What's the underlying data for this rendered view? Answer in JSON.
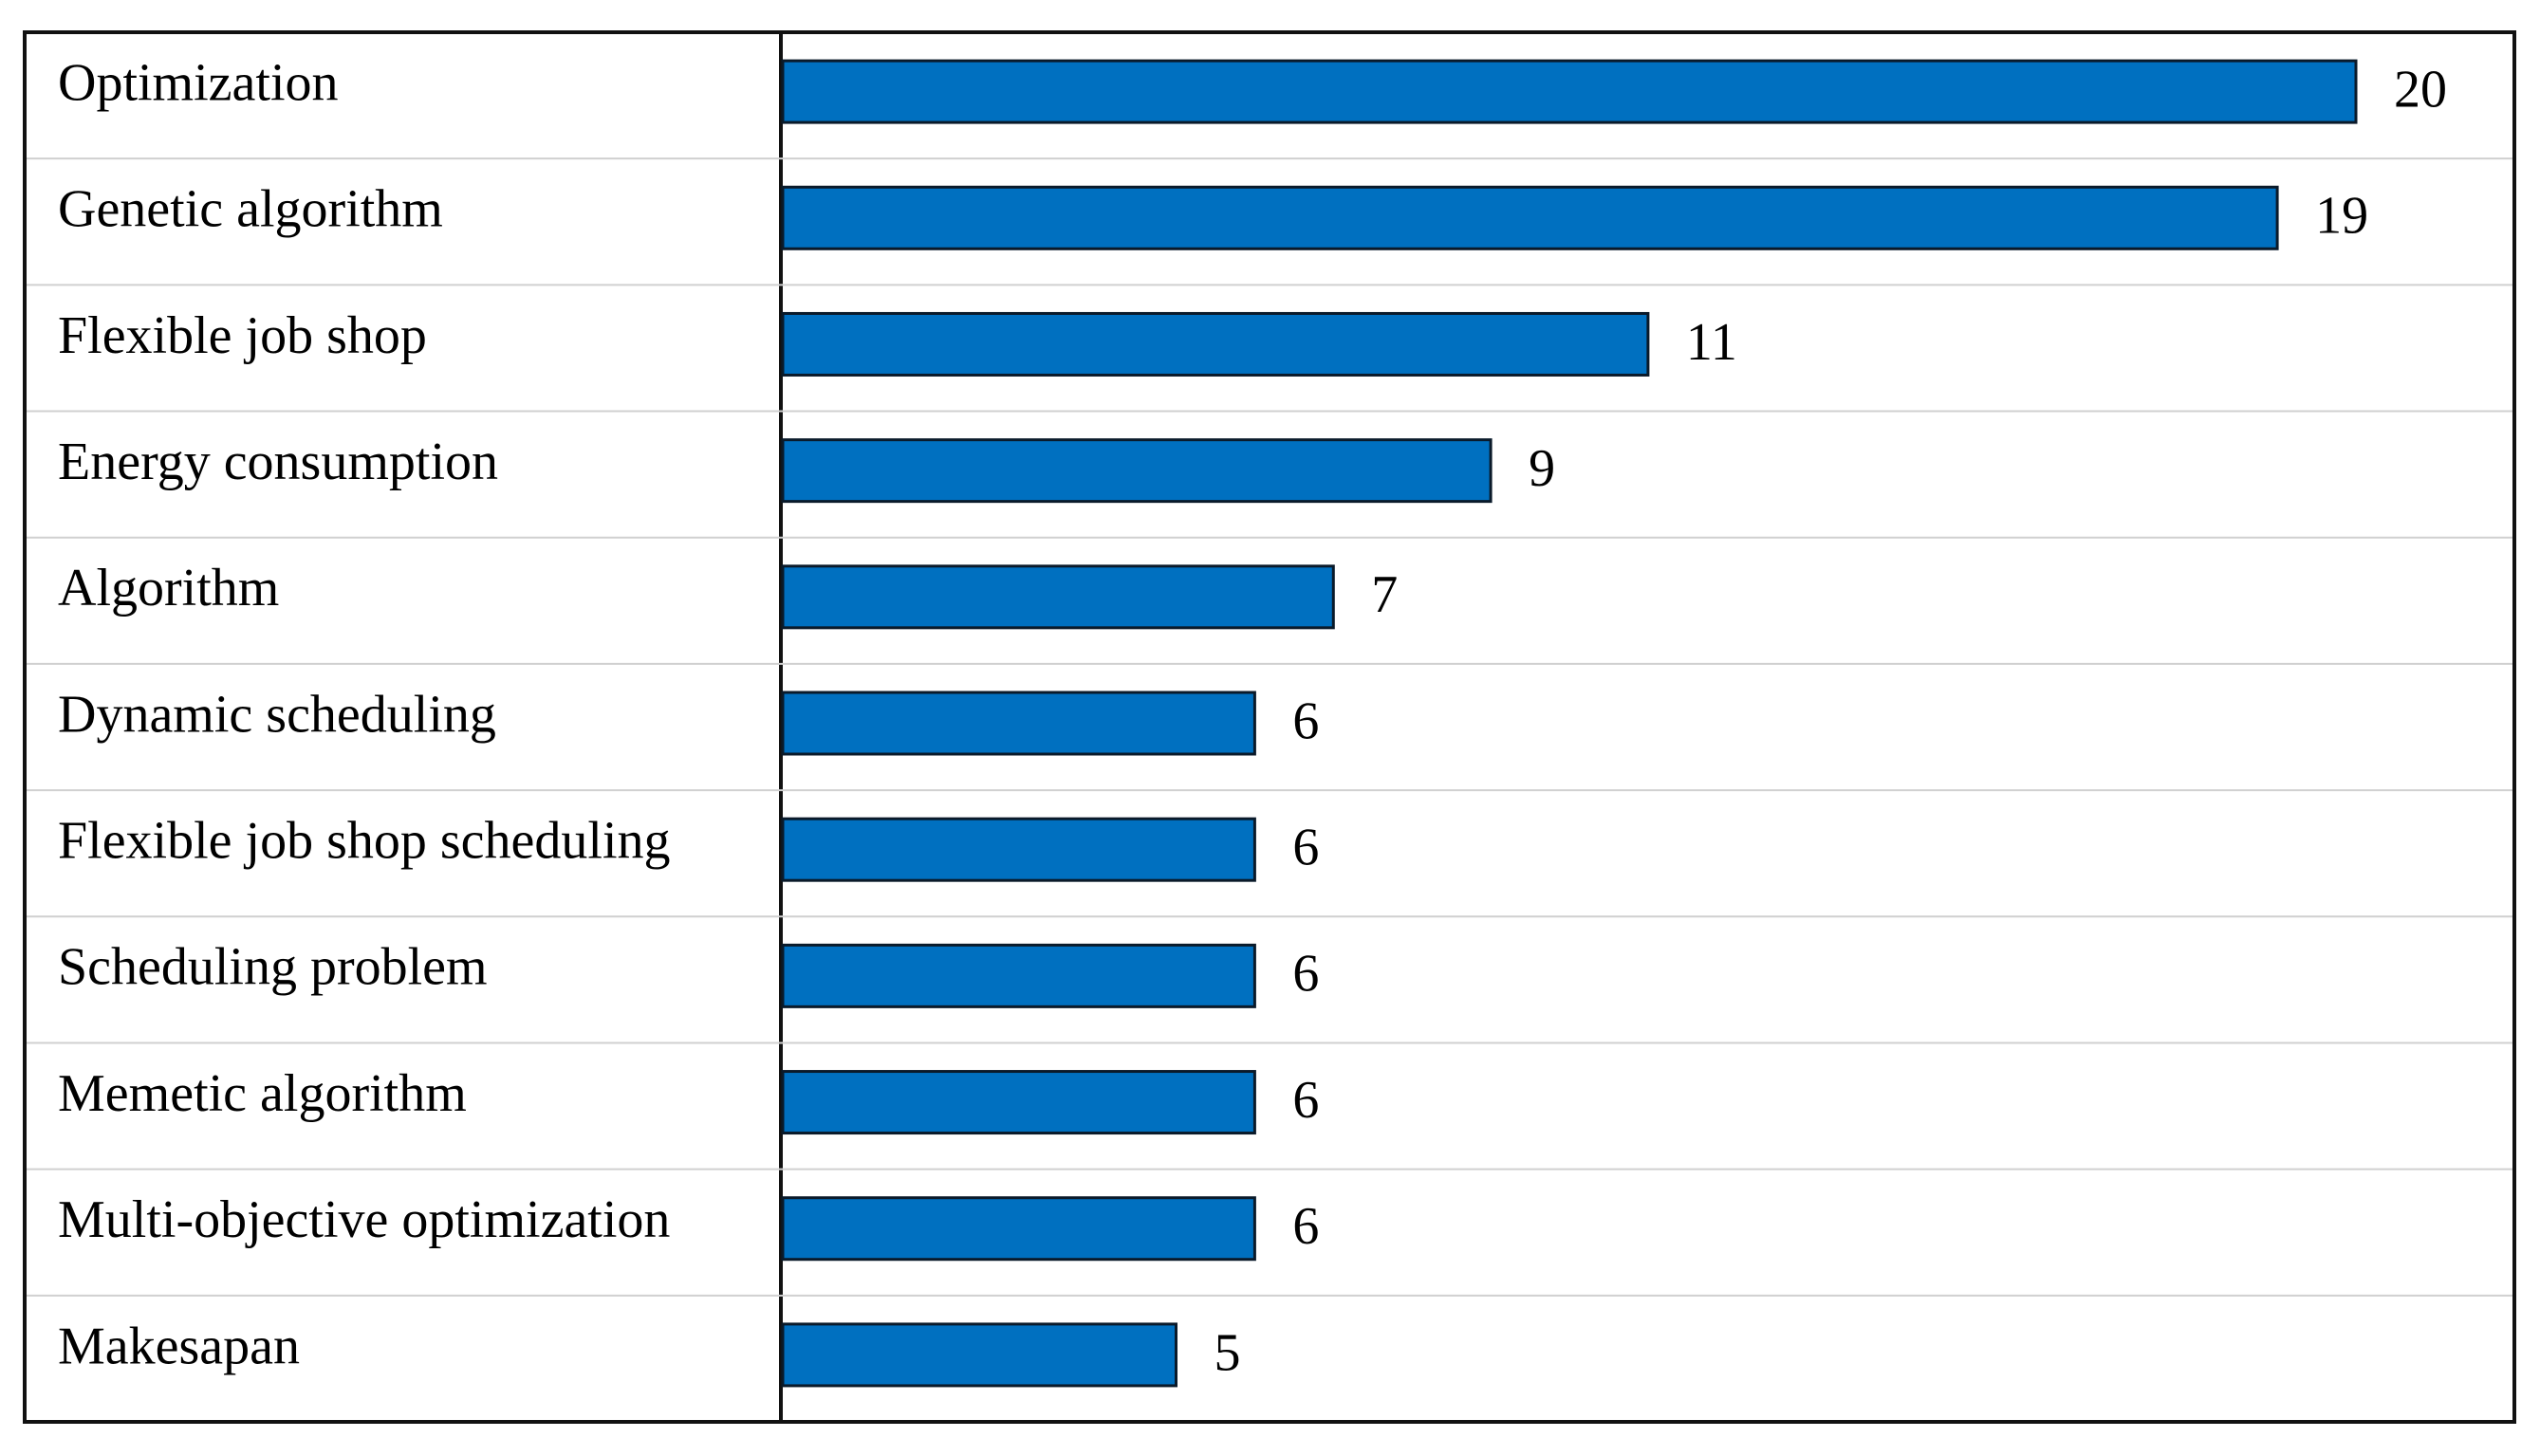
{
  "chart_data": {
    "type": "bar",
    "orientation": "horizontal",
    "categories": [
      "Optimization",
      "Genetic algorithm",
      "Flexible job shop",
      "Energy consumption",
      "Algorithm",
      "Dynamic scheduling",
      "Flexible job shop scheduling",
      "Scheduling problem",
      "Memetic algorithm",
      "Multi-objective optimization",
      "Makesapan"
    ],
    "values": [
      20,
      19,
      11,
      9,
      7,
      6,
      6,
      6,
      6,
      6,
      5
    ],
    "color": "#0070c0"
  }
}
